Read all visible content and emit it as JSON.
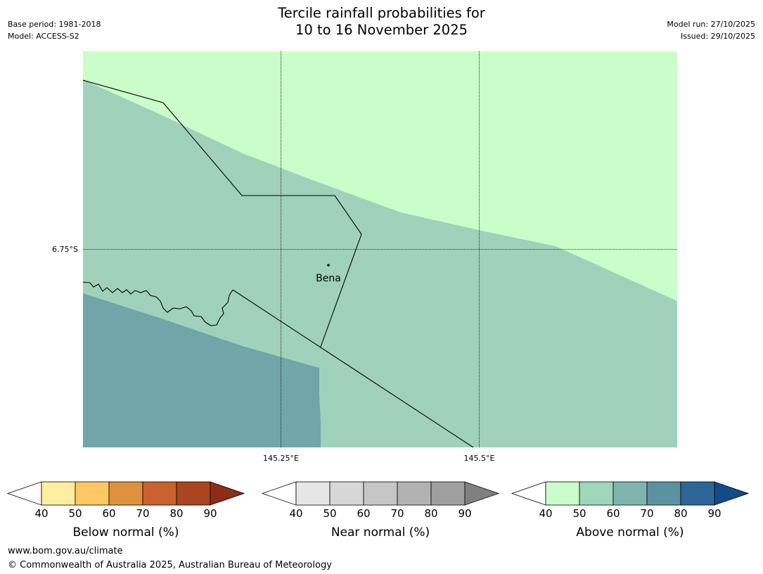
{
  "header": {
    "title_line1": "Tercile rainfall probabilities for",
    "title_line2": "10 to 16 November 2025",
    "base_period": "Base period: 1981-2018",
    "model": "Model: ACCESS-S2",
    "model_run": "Model run: 27/10/2025",
    "issued": "Issued: 29/10/2025"
  },
  "map": {
    "lat_label": "6.75°S",
    "lon_labels": [
      "145.25°E",
      "145.5°E"
    ],
    "place_name": "Bena",
    "colors": {
      "above_40_50": "#cafdc9",
      "above_50_60": "#a0d1bb",
      "above_60_70": "#71a5a9"
    }
  },
  "colorbars": [
    {
      "label": "Below normal (%)",
      "ticks": [
        "40",
        "50",
        "60",
        "70",
        "80",
        "90"
      ],
      "colors": [
        "#ffeda0",
        "#fec965",
        "#e0913e",
        "#c9622f",
        "#a9451f"
      ],
      "extend_color": "#8b2d18"
    },
    {
      "label": "Near normal (%)",
      "ticks": [
        "40",
        "50",
        "60",
        "70",
        "80",
        "90"
      ],
      "colors": [
        "#e6e6e6",
        "#d7d7d7",
        "#c6c6c6",
        "#b2b2b2",
        "#9f9f9f"
      ],
      "extend_color": "#808080"
    },
    {
      "label": "Above normal (%)",
      "ticks": [
        "40",
        "50",
        "60",
        "70",
        "80",
        "90"
      ],
      "colors": [
        "#cafdc9",
        "#a0d6b9",
        "#7fb5ad",
        "#5a92a0",
        "#2f6698"
      ],
      "extend_color": "#124c86"
    }
  ],
  "footer": {
    "website": "www.bom.gov.au/climate",
    "copyright": "© Commonwealth of Australia 2025, Australian Bureau of Meteorology"
  }
}
